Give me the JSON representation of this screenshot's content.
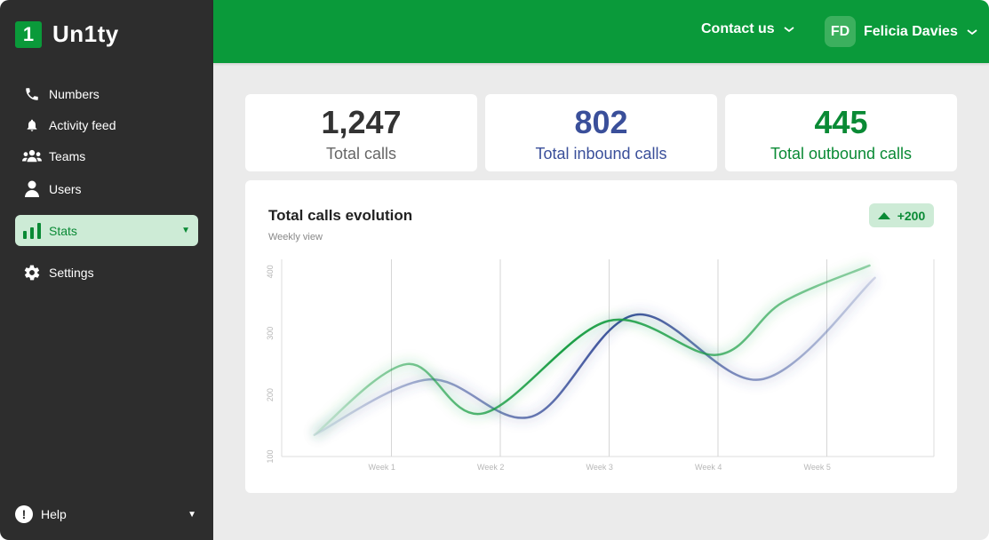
{
  "app": {
    "logo_mark": "1",
    "logo_name": "Un1ty"
  },
  "sidebar": {
    "items": [
      {
        "label": "Numbers",
        "icon": "phone-icon"
      },
      {
        "label": "Activity feed",
        "icon": "bell-icon"
      },
      {
        "label": "Teams",
        "icon": "teams-icon"
      },
      {
        "label": "Users",
        "icon": "user-icon"
      },
      {
        "label": "Stats",
        "icon": "bar-chart-icon",
        "active": true
      },
      {
        "label": "Settings",
        "icon": "gear-icon"
      }
    ],
    "help_label": "Help"
  },
  "header": {
    "contact_label": "Contact us",
    "user_initials": "FD",
    "user_name": "Felicia Davies"
  },
  "stats": [
    {
      "value": "1,247",
      "label": "Total calls",
      "color": "#333333"
    },
    {
      "value": "802",
      "label": "Total inbound calls",
      "color": "#3a4f9a"
    },
    {
      "value": "445",
      "label": "Total outbound calls",
      "color": "#0a8a35"
    }
  ],
  "chart": {
    "title": "Total calls evolution",
    "subtitle": "Weekly view",
    "badge": "+200"
  },
  "colors": {
    "brand": "#0a9a3a",
    "sidebar_bg": "#2d2d2d",
    "inbound": "#3a4f9a",
    "outbound": "#0a8a35"
  },
  "chart_data": {
    "type": "line",
    "title": "Total calls evolution",
    "subtitle": "Weekly view",
    "categories": [
      "Week 1",
      "Week 2",
      "Week 3",
      "Week 4",
      "Week 5"
    ],
    "y_ticks": [
      "100",
      "200",
      "300",
      "400"
    ],
    "ylim": [
      100,
      420
    ],
    "grid": "vertical",
    "series": [
      {
        "color": "#1a9e45",
        "x": [
          0.3,
          1.15,
          1.85,
          3.0,
          4.0,
          4.6,
          5.4
        ],
        "y": [
          135,
          250,
          170,
          320,
          265,
          350,
          410
        ]
      },
      {
        "color": "#3a4f9a",
        "x": [
          0.3,
          1.35,
          2.3,
          3.25,
          4.4,
          5.45
        ],
        "y": [
          135,
          225,
          165,
          330,
          225,
          390
        ]
      }
    ]
  }
}
